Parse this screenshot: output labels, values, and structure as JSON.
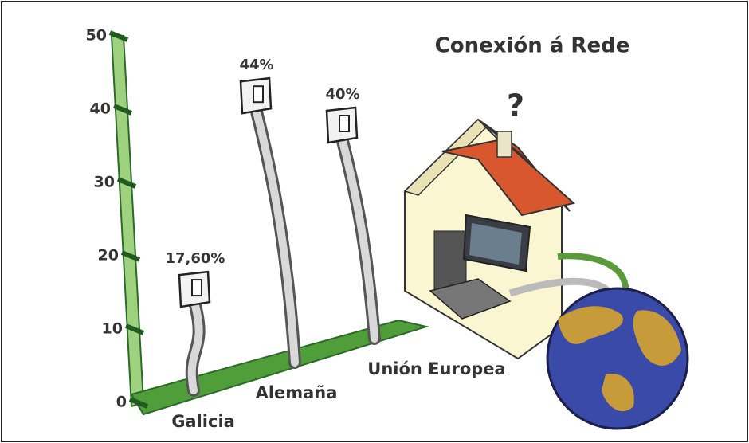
{
  "chart_data": {
    "type": "cable-bar",
    "title": "Conexión á Rede",
    "categories": [
      "Galicia",
      "Alemaña",
      "Unión Europea"
    ],
    "values": [
      17.6,
      44,
      40
    ],
    "value_labels": [
      "17,60%",
      "44%",
      "40%"
    ],
    "color": "#d9d9d9",
    "ylim": [
      0,
      50
    ],
    "yticks": [
      0,
      10,
      20,
      30,
      40,
      50
    ]
  }
}
